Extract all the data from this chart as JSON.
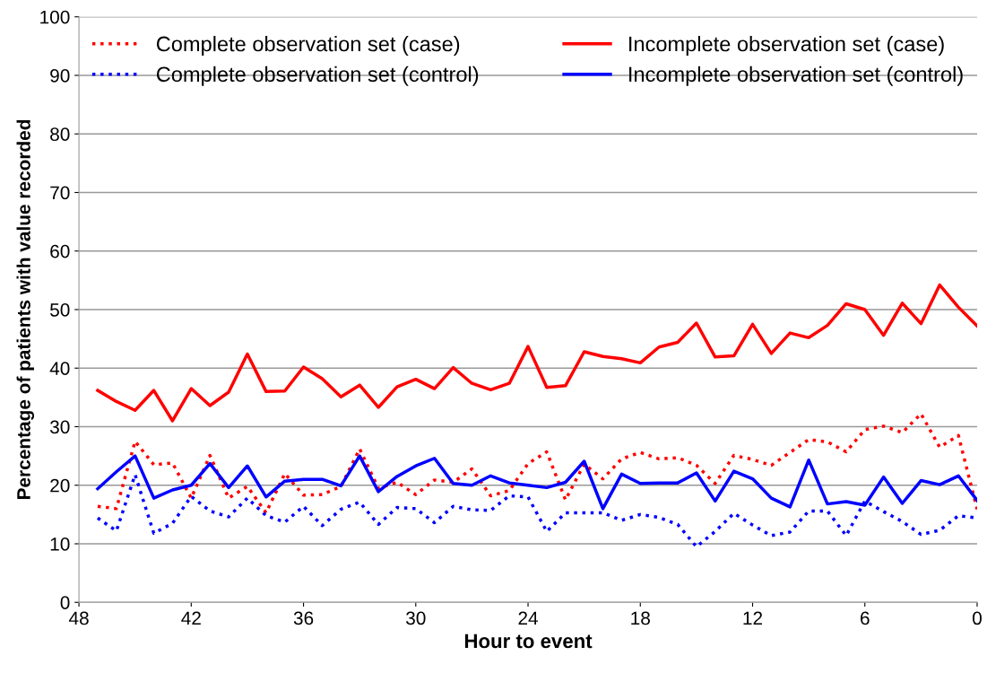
{
  "chart_data": {
    "type": "line",
    "xlabel": "Hour to event",
    "ylabel": "Percentage of patients with value recorded",
    "x": [
      47,
      46,
      45,
      44,
      43,
      42,
      41,
      40,
      39,
      38,
      37,
      36,
      35,
      34,
      33,
      32,
      31,
      30,
      29,
      28,
      27,
      26,
      25,
      24,
      23,
      22,
      21,
      20,
      19,
      18,
      17,
      16,
      15,
      14,
      13,
      12,
      11,
      10,
      9,
      8,
      7,
      6,
      5,
      4,
      3,
      2,
      1,
      0
    ],
    "series": [
      {
        "name": "Complete observation set (case)",
        "color": "#ff0000",
        "line_style": "dotted",
        "values": [
          16.4,
          16.0,
          27.5,
          23.5,
          23.8,
          17.8,
          25.1,
          17.8,
          19.8,
          15.3,
          22.0,
          18.3,
          18.4,
          19.8,
          26.2,
          19.5,
          20.5,
          18.4,
          20.9,
          20.5,
          22.8,
          18.2,
          19.1,
          23.7,
          25.7,
          17.5,
          23.6,
          21.1,
          24.5,
          25.6,
          24.5,
          24.7,
          23.4,
          20.3,
          25.1,
          24.4,
          23.4,
          25.6,
          27.8,
          27.4,
          25.7,
          29.5,
          30.1,
          29.0,
          32.2,
          26.5,
          28.5,
          15.9
        ]
      },
      {
        "name": "Complete observation set (control)",
        "color": "#0000ff",
        "line_style": "dotted",
        "values": [
          14.4,
          12.2,
          21.8,
          11.8,
          13.5,
          18.1,
          15.6,
          14.6,
          17.8,
          14.8,
          13.7,
          16.4,
          13.1,
          15.9,
          17.1,
          13.3,
          16.2,
          16.0,
          13.6,
          16.4,
          15.8,
          15.7,
          18.2,
          18.0,
          12.1,
          15.3,
          15.3,
          15.3,
          14.0,
          15.0,
          14.5,
          13.3,
          9.5,
          12.1,
          15.2,
          13.2,
          11.4,
          12.0,
          15.6,
          15.6,
          11.4,
          17.3,
          15.5,
          13.8,
          11.6,
          12.3,
          14.8,
          14.4
        ]
      },
      {
        "name": "Incomplete observation set (case)",
        "color": "#ff0000",
        "line_style": "solid",
        "values": [
          36.2,
          34.3,
          32.8,
          36.2,
          31.0,
          36.5,
          33.6,
          35.9,
          42.4,
          36.0,
          36.1,
          40.2,
          38.2,
          35.1,
          37.1,
          33.3,
          36.8,
          38.1,
          36.5,
          40.1,
          37.4,
          36.3,
          37.4,
          43.7,
          36.7,
          37.0,
          42.8,
          42.0,
          41.6,
          40.9,
          43.6,
          44.4,
          47.7,
          41.9,
          42.1,
          47.5,
          42.5,
          46.0,
          45.2,
          47.3,
          51.0,
          50.0,
          45.6,
          51.1,
          47.6,
          54.2,
          50.4,
          47.2
        ]
      },
      {
        "name": "Incomplete observation set (control)",
        "color": "#0000ff",
        "line_style": "solid",
        "values": [
          19.4,
          22.3,
          25.0,
          17.8,
          19.2,
          20.0,
          23.7,
          19.6,
          23.3,
          18.0,
          20.7,
          21.0,
          21.0,
          19.9,
          25.0,
          18.9,
          21.5,
          23.3,
          24.6,
          20.3,
          20.0,
          21.6,
          20.4,
          20.0,
          19.6,
          20.5,
          24.1,
          16.0,
          21.9,
          20.3,
          20.4,
          20.4,
          22.1,
          17.3,
          22.4,
          21.1,
          17.8,
          16.3,
          24.3,
          16.8,
          17.2,
          16.6,
          21.4,
          16.9,
          20.8,
          20.1,
          21.6,
          17.4
        ]
      }
    ],
    "xlim": [
      48,
      0
    ],
    "xticks": [
      48,
      42,
      36,
      30,
      24,
      18,
      12,
      6,
      0
    ],
    "ylim": [
      0,
      100
    ],
    "yticks": [
      0,
      10,
      20,
      30,
      40,
      50,
      60,
      70,
      80,
      90,
      100
    ],
    "grid": "y",
    "legend": "top"
  }
}
